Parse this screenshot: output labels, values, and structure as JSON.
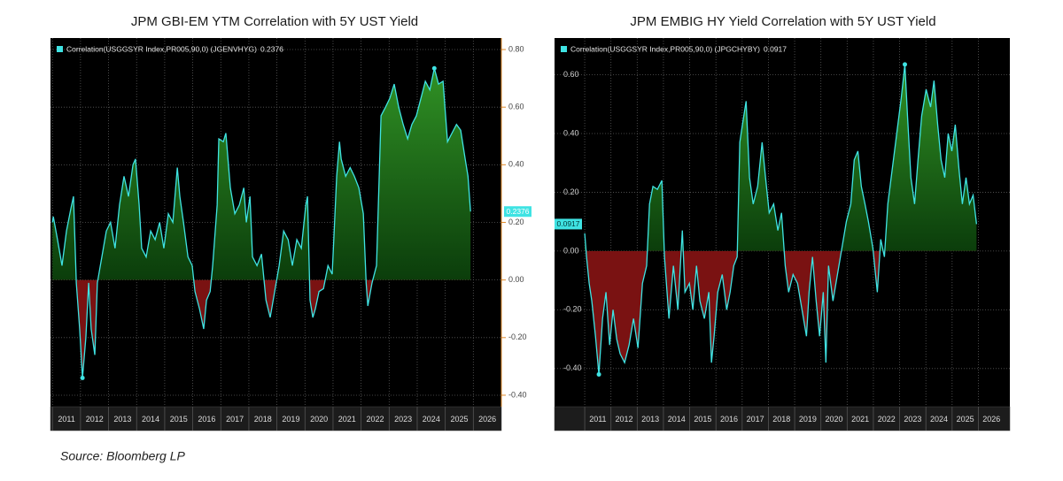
{
  "chart_data": [
    {
      "type": "area",
      "title": "JPM GBI-EM YTM Correlation with 5Y UST Yield",
      "y_axis_side": "right",
      "grid": true,
      "line_color": "#3fe3e3",
      "positive_color": "#2f8f24",
      "negative_color": "#7a1212",
      "xlim": [
        2010.93,
        2027.0
      ],
      "xticks": [
        2011,
        2012,
        2013,
        2014,
        2015,
        2016,
        2017,
        2018,
        2019,
        2020,
        2021,
        2022,
        2023,
        2024,
        2025,
        2026
      ],
      "ylim": [
        -0.44,
        0.84
      ],
      "yticks": [
        {
          "value": -0.4,
          "label": "-0.40"
        },
        {
          "value": -0.2,
          "label": "-0.20"
        },
        {
          "value": 0,
          "label": "0.00"
        },
        {
          "value": 0.2,
          "label": "0.20"
        },
        {
          "value": 0.4,
          "label": "0.40"
        },
        {
          "value": 0.6,
          "label": "0.60"
        },
        {
          "value": 0.8,
          "label": "0.80"
        }
      ],
      "x": [
        2011.0,
        2011.03,
        2011.18,
        2011.34,
        2011.5,
        2011.66,
        2011.75,
        2011.85,
        2011.97,
        2012.07,
        2012.19,
        2012.29,
        2012.38,
        2012.51,
        2012.6,
        2012.76,
        2012.92,
        2013.07,
        2013.23,
        2013.39,
        2013.55,
        2013.71,
        2013.87,
        2013.96,
        2014.09,
        2014.18,
        2014.34,
        2014.5,
        2014.66,
        2014.82,
        2014.97,
        2015.13,
        2015.29,
        2015.45,
        2015.54,
        2015.67,
        2015.83,
        2015.98,
        2016.08,
        2016.24,
        2016.39,
        2016.49,
        2016.62,
        2016.71,
        2016.87,
        2016.93,
        2017.09,
        2017.18,
        2017.34,
        2017.5,
        2017.66,
        2017.82,
        2017.91,
        2018.04,
        2018.13,
        2018.29,
        2018.45,
        2018.61,
        2018.76,
        2018.92,
        2019.08,
        2019.24,
        2019.4,
        2019.55,
        2019.71,
        2019.87,
        2020.03,
        2020.09,
        2020.18,
        2020.28,
        2020.37,
        2020.5,
        2020.66,
        2020.82,
        2020.97,
        2021.13,
        2021.23,
        2021.29,
        2021.45,
        2021.61,
        2021.76,
        2021.92,
        2022.08,
        2022.18,
        2022.24,
        2022.39,
        2022.55,
        2022.71,
        2022.87,
        2023.02,
        2023.18,
        2023.34,
        2023.5,
        2023.66,
        2023.81,
        2023.97,
        2024.13,
        2024.29,
        2024.45,
        2024.61,
        2024.76,
        2024.92,
        2025.08,
        2025.24,
        2025.4,
        2025.55,
        2025.71,
        2025.81,
        2025.9
      ],
      "series": [
        {
          "name": "Correlation(USGGSYR Index,PR005,90,0) (JGENVHYG)",
          "values": [
            0.2,
            0.22,
            0.14,
            0.05,
            0.17,
            0.25,
            0.29,
            -0.01,
            -0.17,
            -0.34,
            -0.2,
            -0.01,
            -0.17,
            -0.26,
            -0.01,
            0.08,
            0.17,
            0.2,
            0.11,
            0.26,
            0.36,
            0.29,
            0.4,
            0.42,
            0.26,
            0.11,
            0.08,
            0.17,
            0.14,
            0.2,
            0.11,
            0.23,
            0.2,
            0.39,
            0.29,
            0.2,
            0.08,
            0.05,
            -0.04,
            -0.1,
            -0.17,
            -0.07,
            -0.04,
            0.05,
            0.26,
            0.49,
            0.48,
            0.51,
            0.32,
            0.23,
            0.26,
            0.32,
            0.2,
            0.29,
            0.08,
            0.05,
            0.09,
            -0.07,
            -0.13,
            -0.04,
            0.05,
            0.17,
            0.14,
            0.05,
            0.14,
            0.11,
            0.26,
            0.29,
            -0.07,
            -0.13,
            -0.1,
            -0.04,
            -0.03,
            0.05,
            0.02,
            0.36,
            0.48,
            0.42,
            0.36,
            0.39,
            0.36,
            0.32,
            0.23,
            -0.01,
            -0.09,
            -0.01,
            0.05,
            0.57,
            0.6,
            0.63,
            0.68,
            0.6,
            0.54,
            0.49,
            0.54,
            0.57,
            0.63,
            0.69,
            0.66,
            0.735,
            0.68,
            0.69,
            0.48,
            0.51,
            0.54,
            0.52,
            0.42,
            0.36,
            0.2376
          ]
        }
      ]
    },
    {
      "type": "area",
      "title": "JPM EMBIG HY Yield Correlation with 5Y UST Yield",
      "y_axis_side": "left",
      "grid": true,
      "line_color": "#3fe3e3",
      "positive_color": "#2f8f24",
      "negative_color": "#7a1212",
      "xlim": [
        2009.85,
        2027.2
      ],
      "xticks": [
        2011,
        2012,
        2013,
        2014,
        2015,
        2016,
        2017,
        2018,
        2019,
        2020,
        2021,
        2022,
        2023,
        2024,
        2025,
        2026
      ],
      "ylim": [
        -0.53,
        0.725
      ],
      "yticks": [
        {
          "value": -0.4,
          "label": "-0.40"
        },
        {
          "value": -0.2,
          "label": "-0.20"
        },
        {
          "value": 0,
          "label": "0.00"
        },
        {
          "value": 0.2,
          "label": "0.20"
        },
        {
          "value": 0.4,
          "label": "0.40"
        },
        {
          "value": 0.6,
          "label": "0.60"
        }
      ],
      "x": [
        2011.0,
        2011.07,
        2011.17,
        2011.27,
        2011.41,
        2011.54,
        2011.68,
        2011.81,
        2011.95,
        2012.08,
        2012.22,
        2012.35,
        2012.52,
        2012.69,
        2012.86,
        2013.03,
        2013.2,
        2013.36,
        2013.47,
        2013.6,
        2013.77,
        2013.94,
        2014.04,
        2014.21,
        2014.38,
        2014.55,
        2014.72,
        2014.82,
        2014.99,
        2015.12,
        2015.26,
        2015.39,
        2015.56,
        2015.73,
        2015.83,
        2015.93,
        2016.07,
        2016.24,
        2016.41,
        2016.54,
        2016.68,
        2016.81,
        2016.91,
        2017.01,
        2017.15,
        2017.28,
        2017.42,
        2017.59,
        2017.76,
        2017.89,
        2018.03,
        2018.2,
        2018.36,
        2018.5,
        2018.64,
        2018.77,
        2018.94,
        2019.11,
        2019.28,
        2019.45,
        2019.55,
        2019.68,
        2019.82,
        2019.95,
        2020.09,
        2020.19,
        2020.29,
        2020.46,
        2020.63,
        2020.8,
        2020.97,
        2021.14,
        2021.27,
        2021.41,
        2021.54,
        2021.68,
        2021.81,
        2021.98,
        2022.15,
        2022.28,
        2022.42,
        2022.55,
        2022.72,
        2022.89,
        2023.06,
        2023.2,
        2023.3,
        2023.43,
        2023.57,
        2023.7,
        2023.84,
        2024.01,
        2024.18,
        2024.31,
        2024.45,
        2024.58,
        2024.72,
        2024.85,
        2024.99,
        2025.12,
        2025.26,
        2025.39,
        2025.53,
        2025.66,
        2025.8,
        2025.93
      ],
      "series": [
        {
          "name": "Correlation(USGGSYR Index,PR005,90,0) (JPGCHYBY)",
          "values": [
            0.06,
            -0.02,
            -0.11,
            -0.17,
            -0.29,
            -0.42,
            -0.23,
            -0.14,
            -0.32,
            -0.2,
            -0.3,
            -0.35,
            -0.38,
            -0.32,
            -0.23,
            -0.33,
            -0.11,
            -0.05,
            0.16,
            0.22,
            0.21,
            0.24,
            -0.02,
            -0.23,
            -0.05,
            -0.2,
            0.07,
            -0.14,
            -0.11,
            -0.2,
            -0.05,
            -0.17,
            -0.23,
            -0.14,
            -0.38,
            -0.29,
            -0.14,
            -0.08,
            -0.2,
            -0.14,
            -0.05,
            -0.02,
            0.37,
            0.43,
            0.51,
            0.25,
            0.16,
            0.22,
            0.37,
            0.25,
            0.13,
            0.16,
            0.07,
            0.13,
            -0.05,
            -0.14,
            -0.08,
            -0.11,
            -0.2,
            -0.29,
            -0.14,
            -0.02,
            -0.17,
            -0.29,
            -0.14,
            -0.38,
            -0.05,
            -0.17,
            -0.08,
            0.01,
            0.1,
            0.16,
            0.31,
            0.34,
            0.22,
            0.16,
            0.1,
            0.01,
            -0.14,
            0.04,
            -0.02,
            0.16,
            0.28,
            0.4,
            0.52,
            0.635,
            0.46,
            0.25,
            0.16,
            0.31,
            0.46,
            0.55,
            0.49,
            0.58,
            0.43,
            0.31,
            0.25,
            0.4,
            0.34,
            0.43,
            0.28,
            0.16,
            0.25,
            0.16,
            0.19,
            0.0917
          ]
        }
      ]
    }
  ],
  "source": "Source: Bloomberg LP"
}
